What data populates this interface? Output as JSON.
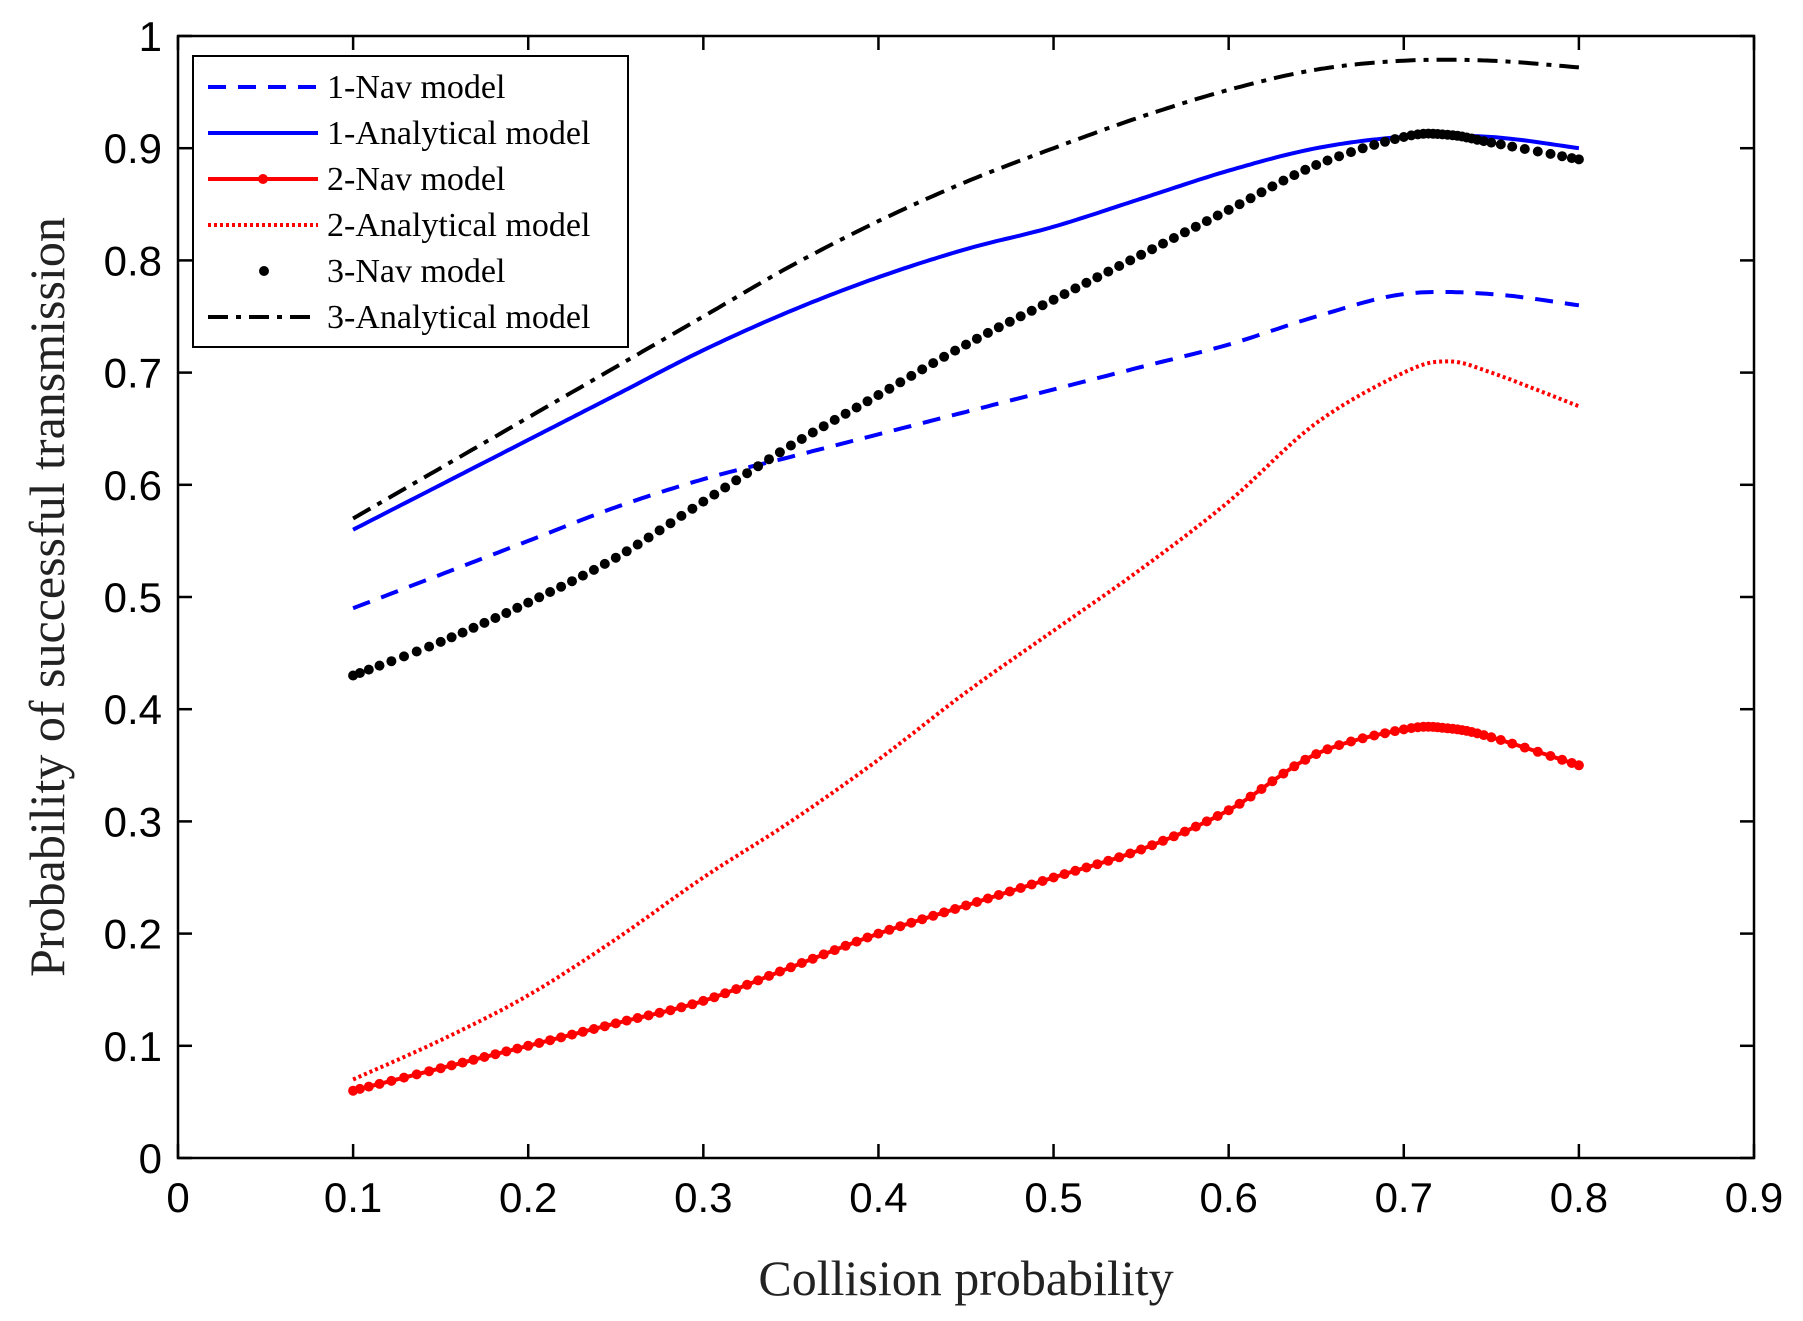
{
  "chart_data": {
    "type": "line",
    "title": "",
    "xlabel": "Collision probability",
    "ylabel": "Probability of successful transmission",
    "xlim": [
      0,
      0.9
    ],
    "ylim": [
      0,
      1
    ],
    "xticks": [
      0,
      0.1,
      0.2,
      0.3,
      0.4,
      0.5,
      0.6,
      0.7,
      0.8,
      0.9
    ],
    "xtick_labels": [
      "0",
      "0.1",
      "0.2",
      "0.3",
      "0.4",
      "0.5",
      "0.6",
      "0.7",
      "0.8",
      "0.9"
    ],
    "yticks": [
      0,
      0.1,
      0.2,
      0.3,
      0.4,
      0.5,
      0.6,
      0.7,
      0.8,
      0.9,
      1
    ],
    "ytick_labels": [
      "0",
      "0.1",
      "0.2",
      "0.3",
      "0.4",
      "0.5",
      "0.6",
      "0.7",
      "0.8",
      "0.9",
      "1"
    ],
    "grid": false,
    "legend_position": "top-left",
    "series": [
      {
        "name": "1-Nav model",
        "color": "#0000ff",
        "style": "dashed",
        "x": [
          0.1,
          0.15,
          0.2,
          0.25,
          0.3,
          0.35,
          0.4,
          0.45,
          0.5,
          0.55,
          0.6,
          0.65,
          0.7,
          0.75,
          0.8
        ],
        "y": [
          0.49,
          0.52,
          0.55,
          0.58,
          0.605,
          0.625,
          0.645,
          0.665,
          0.685,
          0.705,
          0.725,
          0.75,
          0.77,
          0.77,
          0.76
        ]
      },
      {
        "name": "1-Analytical model",
        "color": "#0000ff",
        "style": "solid",
        "x": [
          0.1,
          0.15,
          0.2,
          0.25,
          0.3,
          0.35,
          0.4,
          0.45,
          0.5,
          0.55,
          0.6,
          0.65,
          0.7,
          0.75,
          0.8
        ],
        "y": [
          0.56,
          0.6,
          0.64,
          0.68,
          0.72,
          0.755,
          0.785,
          0.81,
          0.83,
          0.855,
          0.88,
          0.9,
          0.91,
          0.91,
          0.9
        ]
      },
      {
        "name": "2-Nav model",
        "color": "#ff0000",
        "style": "solid-dots",
        "x": [
          0.1,
          0.15,
          0.2,
          0.25,
          0.3,
          0.35,
          0.4,
          0.45,
          0.5,
          0.55,
          0.6,
          0.65,
          0.7,
          0.725,
          0.75,
          0.8
        ],
        "y": [
          0.06,
          0.08,
          0.1,
          0.12,
          0.14,
          0.17,
          0.2,
          0.225,
          0.25,
          0.275,
          0.31,
          0.36,
          0.382,
          0.383,
          0.375,
          0.35
        ]
      },
      {
        "name": "2-Analytical model",
        "color": "#ff0000",
        "style": "dotted",
        "x": [
          0.1,
          0.15,
          0.2,
          0.25,
          0.3,
          0.35,
          0.4,
          0.45,
          0.5,
          0.55,
          0.6,
          0.65,
          0.7,
          0.725,
          0.75,
          0.8
        ],
        "y": [
          0.07,
          0.105,
          0.145,
          0.195,
          0.25,
          0.3,
          0.355,
          0.415,
          0.47,
          0.525,
          0.585,
          0.655,
          0.7,
          0.71,
          0.7,
          0.67
        ]
      },
      {
        "name": "3-Nav model",
        "color": "#000000",
        "style": "dots",
        "x": [
          0.1,
          0.15,
          0.2,
          0.25,
          0.3,
          0.35,
          0.4,
          0.45,
          0.5,
          0.55,
          0.6,
          0.65,
          0.7,
          0.725,
          0.75,
          0.8
        ],
        "y": [
          0.43,
          0.46,
          0.495,
          0.535,
          0.585,
          0.635,
          0.68,
          0.725,
          0.765,
          0.805,
          0.845,
          0.885,
          0.91,
          0.912,
          0.905,
          0.89
        ]
      },
      {
        "name": "3-Analytical model",
        "color": "#000000",
        "style": "dash-dot",
        "x": [
          0.1,
          0.15,
          0.2,
          0.25,
          0.3,
          0.35,
          0.4,
          0.45,
          0.5,
          0.55,
          0.6,
          0.65,
          0.7,
          0.75,
          0.8
        ],
        "y": [
          0.57,
          0.615,
          0.66,
          0.705,
          0.75,
          0.795,
          0.835,
          0.87,
          0.9,
          0.928,
          0.952,
          0.97,
          0.978,
          0.978,
          0.972
        ]
      }
    ]
  }
}
